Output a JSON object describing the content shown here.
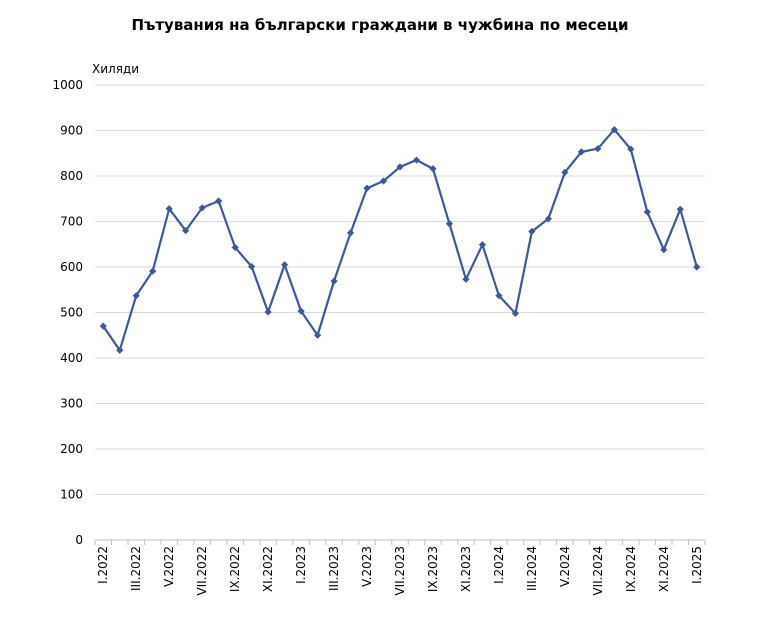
{
  "chart_data": {
    "type": "line",
    "title": "Пътувания на български граждани в чужбина по месеци",
    "ylabel": "Хиляди",
    "xlabel": "",
    "ylim": [
      0,
      1000
    ],
    "yticks": [
      0,
      100,
      200,
      300,
      400,
      500,
      600,
      700,
      800,
      900,
      1000
    ],
    "grid": true,
    "legend": "none",
    "color": "#3c5a9a",
    "x": [
      "I.2022",
      "II.2022",
      "III.2022",
      "IV.2022",
      "V.2022",
      "VI.2022",
      "VII.2022",
      "VIII.2022",
      "IX.2022",
      "X.2022",
      "XI.2022",
      "XII.2022",
      "I.2023",
      "II.2023",
      "III.2023",
      "IV.2023",
      "V.2023",
      "VI.2023",
      "VII.2023",
      "VIII.2023",
      "IX.2023",
      "X.2023",
      "XI.2023",
      "XII.2023",
      "I.2024",
      "II.2024",
      "III.2024",
      "IV.2024",
      "V.2024",
      "VI.2024",
      "VII.2024",
      "VIII.2024",
      "IX.2024",
      "X.2024",
      "XI.2024",
      "XII.2024",
      "I.2025"
    ],
    "x_tick_labels": [
      "I.2022",
      "III.2022",
      "V.2022",
      "VII.2022",
      "IX.2022",
      "XI.2022",
      "I.2023",
      "III.2023",
      "V.2023",
      "VII.2023",
      "IX.2023",
      "XI.2023",
      "I.2024",
      "III.2024",
      "V.2024",
      "VII.2024",
      "IX.2024",
      "XI.2024",
      "I.2025"
    ],
    "series": [
      {
        "values": [
          470,
          417,
          537,
          591,
          728,
          680,
          730,
          745,
          643,
          601,
          501,
          605,
          503,
          450,
          569,
          675,
          773,
          789,
          820,
          835,
          816,
          695,
          573,
          649,
          537,
          498,
          678,
          706,
          808,
          853,
          860,
          902,
          859,
          721,
          638,
          727,
          600
        ]
      }
    ]
  }
}
